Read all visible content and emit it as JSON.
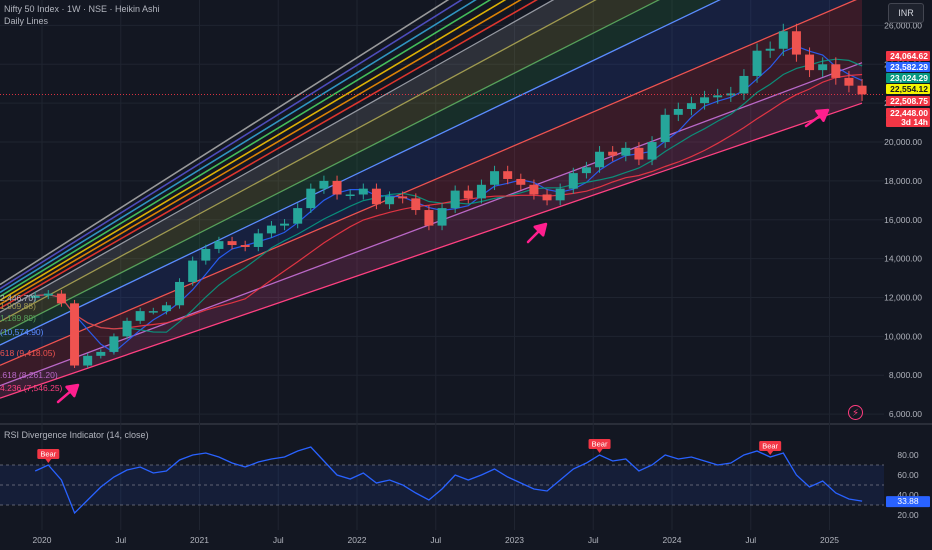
{
  "header": {
    "title": "Nifty 50 Index · 1W · NSE · Heikin Ashi",
    "subtitle": "Daily Lines",
    "currency": "INR"
  },
  "rsi_panel": {
    "label": "RSI Divergence Indicator (14, close)",
    "value_label": "33.88"
  },
  "price_tags": [
    {
      "text": "24,064.62",
      "bg": "#f23645",
      "fg": "#ffffff"
    },
    {
      "text": "23,582.29",
      "bg": "#2962ff",
      "fg": "#ffffff"
    },
    {
      "text": "23,024.29",
      "bg": "#089981",
      "fg": "#ffffff"
    },
    {
      "text": "22,554.12",
      "bg": "#f5f500",
      "fg": "#131722"
    },
    {
      "text": "22,508.75",
      "bg": "#f23645",
      "fg": "#ffffff"
    },
    {
      "text": "22,448.00",
      "bg": "#f23645",
      "fg": "#ffffff"
    },
    {
      "text": "3d 14h",
      "bg": "#f23645",
      "fg": "#ffffff"
    }
  ],
  "fib_labels": [
    {
      "text": "2,446.70)",
      "color": "#b2b5be"
    },
    {
      "text": "1,909.88)",
      "color": "#a09a50"
    },
    {
      "text": "1,189.89)",
      "color": "#57a05a"
    },
    {
      "text": "(10,574.90)",
      "color": "#5b8cff"
    },
    {
      "text": "618 (9,418.05)",
      "color": "#ef5350"
    },
    {
      "text": ".618 (8,261.20)",
      "color": "#ba68c8"
    },
    {
      "text": "4.236 (7,546.25)",
      "color": "#ff4081"
    }
  ],
  "chart_data": [
    {
      "type": "line",
      "title": "Nifty 50 Index · 1W · NSE · Heikin Ashi",
      "subtitle": "Daily Lines",
      "series": [
        {
          "x": [
            "2019-12",
            "2020-01",
            "2020-02",
            "2020-03",
            "2020-04",
            "2020-05",
            "2020-06",
            "2020-07",
            "2020-08",
            "2020-09",
            "2020-10",
            "2020-11",
            "2020-12",
            "2021-01",
            "2021-02",
            "2021-03",
            "2021-04",
            "2021-05",
            "2021-06",
            "2021-07",
            "2021-08",
            "2021-09",
            "2021-10",
            "2021-11",
            "2021-12",
            "2022-01",
            "2022-02",
            "2022-03",
            "2022-04",
            "2022-05",
            "2022-06",
            "2022-07",
            "2022-08",
            "2022-09",
            "2022-10",
            "2022-11",
            "2022-12",
            "2023-01",
            "2023-02",
            "2023-03",
            "2023-04",
            "2023-05",
            "2023-06",
            "2023-07",
            "2023-08",
            "2023-09",
            "2023-10",
            "2023-11",
            "2023-12",
            "2024-01",
            "2024-02",
            "2024-03",
            "2024-04",
            "2024-05",
            "2024-06",
            "2024-07",
            "2024-08",
            "2024-09",
            "2024-10",
            "2024-11",
            "2024-12",
            "2025-01",
            "2025-02",
            "2025-03"
          ],
          "values": [
            12100,
            12200,
            11700,
            8500,
            9000,
            9200,
            10000,
            10800,
            11300,
            11300,
            11600,
            12800,
            13900,
            14500,
            14900,
            14700,
            14600,
            15300,
            15700,
            15800,
            16600,
            17600,
            18000,
            17300,
            17300,
            17600,
            16800,
            17200,
            17100,
            16500,
            15700,
            16600,
            17500,
            17100,
            17800,
            18500,
            18100,
            17800,
            17300,
            17000,
            17600,
            18400,
            18700,
            19500,
            19300,
            19700,
            19100,
            20000,
            21400,
            21700,
            22000,
            22300,
            22400,
            22500,
            23400,
            24700,
            24800,
            25700,
            24500,
            23700,
            24000,
            23300,
            22900,
            22450
          ]
        }
      ],
      "ylim": [
        5800,
        27200
      ],
      "y_ticks": [
        "26,000.00",
        "24,000.00",
        "22,000.00",
        "20,000.00",
        "18,000.00",
        "16,000.00",
        "14,000.00",
        "12,000.00",
        "10,000.00",
        "8,000.00",
        "6,000.00"
      ],
      "x_ticks": [
        "2020",
        "Jul",
        "2021",
        "Jul",
        "2022",
        "Jul",
        "2023",
        "Jul",
        "2024",
        "Jul",
        "2025"
      ],
      "channel": {
        "start": "2020-03",
        "end": "2025-03",
        "base_start": 7546.25,
        "base_end": 22000,
        "levels": [
          7546.25,
          8261.2,
          9418.05,
          10574.9,
          11189.89,
          11909.88,
          12446.7
        ]
      }
    },
    {
      "type": "line",
      "title": "RSI Divergence Indicator (14, close)",
      "series": [
        {
          "x": [
            "2019-12",
            "2020-01",
            "2020-02",
            "2020-03",
            "2020-04",
            "2020-05",
            "2020-06",
            "2020-07",
            "2020-08",
            "2020-09",
            "2020-10",
            "2020-11",
            "2020-12",
            "2021-01",
            "2021-02",
            "2021-03",
            "2021-04",
            "2021-05",
            "2021-06",
            "2021-07",
            "2021-08",
            "2021-09",
            "2021-10",
            "2021-11",
            "2021-12",
            "2022-01",
            "2022-02",
            "2022-03",
            "2022-04",
            "2022-05",
            "2022-06",
            "2022-07",
            "2022-08",
            "2022-09",
            "2022-10",
            "2022-11",
            "2022-12",
            "2023-01",
            "2023-02",
            "2023-03",
            "2023-04",
            "2023-05",
            "2023-06",
            "2023-07",
            "2023-08",
            "2023-09",
            "2023-10",
            "2023-11",
            "2023-12",
            "2024-01",
            "2024-02",
            "2024-03",
            "2024-04",
            "2024-05",
            "2024-06",
            "2024-07",
            "2024-08",
            "2024-09",
            "2024-10",
            "2024-11",
            "2024-12",
            "2025-01",
            "2025-02",
            "2025-03"
          ],
          "values": [
            64,
            70,
            55,
            22,
            35,
            48,
            58,
            65,
            68,
            62,
            64,
            75,
            80,
            82,
            78,
            72,
            68,
            73,
            76,
            78,
            84,
            88,
            74,
            60,
            56,
            62,
            52,
            55,
            50,
            42,
            35,
            46,
            60,
            55,
            60,
            66,
            58,
            52,
            46,
            44,
            55,
            66,
            72,
            80,
            74,
            76,
            64,
            70,
            80,
            76,
            78,
            74,
            70,
            72,
            80,
            84,
            78,
            82,
            60,
            48,
            54,
            42,
            36,
            33.88
          ]
        }
      ],
      "ylim": [
        12,
        95
      ],
      "y_ticks": [
        "80.00",
        "60.00",
        "40.00",
        "20.00"
      ],
      "levels": [
        70,
        50,
        30
      ],
      "annotations": [
        {
          "text": "Bear",
          "x": "2020-01"
        },
        {
          "text": "Bear",
          "x": "2023-07"
        },
        {
          "text": "Bear",
          "x": "2024-08"
        }
      ]
    }
  ]
}
